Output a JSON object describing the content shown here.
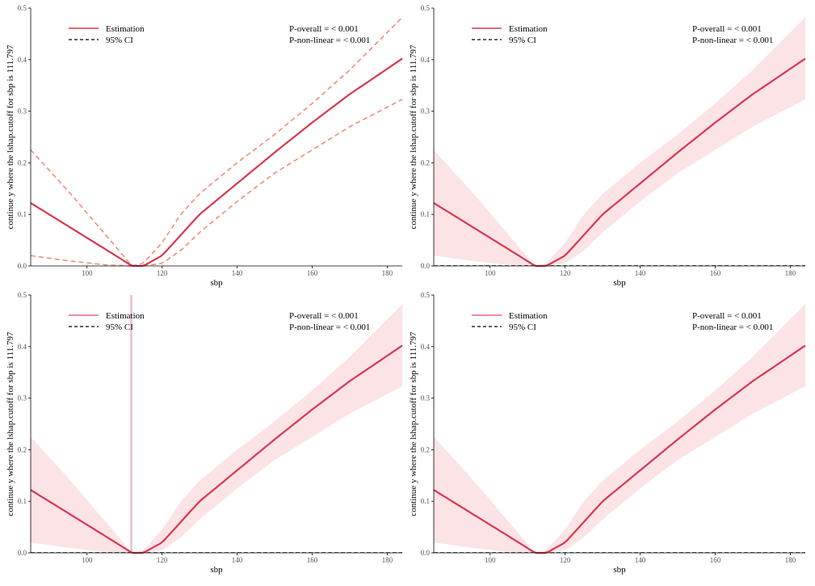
{
  "chart_data": [
    {
      "id": "panel-1",
      "type": "line",
      "ci_style": "dashed",
      "xlabel": "sbp",
      "ylabel": "continue y where the lshap.cutoff for sbp is 111.797",
      "xlim": [
        85,
        184
      ],
      "ylim": [
        0,
        0.5
      ],
      "xticks": [
        100,
        120,
        140,
        160,
        180
      ],
      "yticks": [
        0.0,
        0.1,
        0.2,
        0.3,
        0.4,
        0.5
      ],
      "legend": [
        "Estimation",
        "95% CI"
      ],
      "p_overall": "P-overall = < 0.001",
      "p_nonlinear": "P-non-linear = < 0.001",
      "estimate": {
        "x": [
          85,
          95,
          105,
          112,
          115,
          120,
          125,
          130,
          140,
          150,
          160,
          170,
          184
        ],
        "y": [
          0.122,
          0.077,
          0.032,
          0.0,
          0.0,
          0.02,
          0.06,
          0.1,
          0.16,
          0.22,
          0.278,
          0.333,
          0.402
        ]
      },
      "ci_lower": {
        "x": [
          85,
          95,
          105,
          112,
          115,
          120,
          125,
          130,
          140,
          150,
          160,
          170,
          184
        ],
        "y": [
          0.02,
          0.01,
          0.002,
          0.0,
          0.0,
          0.005,
          0.03,
          0.065,
          0.125,
          0.18,
          0.225,
          0.27,
          0.323
        ]
      },
      "ci_upper": {
        "x": [
          85,
          95,
          105,
          112,
          115,
          120,
          125,
          130,
          140,
          150,
          160,
          170,
          184
        ],
        "y": [
          0.225,
          0.145,
          0.06,
          0.0,
          0.005,
          0.045,
          0.1,
          0.14,
          0.2,
          0.255,
          0.315,
          0.38,
          0.482
        ]
      }
    },
    {
      "id": "panel-2",
      "type": "line",
      "ci_style": "ribbon",
      "xlabel": "sbp",
      "ylabel": "continue y where the lshap.cutoff for sbp is 111.797",
      "xlim": [
        85,
        184
      ],
      "ylim": [
        0,
        0.5
      ],
      "xticks": [
        100,
        120,
        140,
        160,
        180
      ],
      "yticks": [
        0.0,
        0.1,
        0.2,
        0.3,
        0.4,
        0.5
      ],
      "legend": [
        "Estimation",
        "95% CI"
      ],
      "p_overall": "P-overall = < 0.001",
      "p_nonlinear": "P-non-linear = < 0.001",
      "estimate": {
        "x": [
          85,
          95,
          105,
          112,
          115,
          120,
          125,
          130,
          140,
          150,
          160,
          170,
          184
        ],
        "y": [
          0.122,
          0.077,
          0.032,
          0.0,
          0.0,
          0.02,
          0.06,
          0.1,
          0.16,
          0.22,
          0.278,
          0.333,
          0.402
        ]
      },
      "ci_lower": {
        "x": [
          85,
          95,
          105,
          112,
          115,
          120,
          125,
          130,
          140,
          150,
          160,
          170,
          184
        ],
        "y": [
          0.02,
          0.01,
          0.002,
          0.0,
          0.0,
          0.005,
          0.03,
          0.065,
          0.125,
          0.18,
          0.225,
          0.27,
          0.323
        ]
      },
      "ci_upper": {
        "x": [
          85,
          95,
          105,
          112,
          115,
          120,
          125,
          130,
          140,
          150,
          160,
          170,
          184
        ],
        "y": [
          0.225,
          0.145,
          0.06,
          0.0,
          0.005,
          0.045,
          0.1,
          0.14,
          0.2,
          0.255,
          0.315,
          0.38,
          0.482
        ]
      }
    },
    {
      "id": "panel-3",
      "type": "line",
      "ci_style": "ribbon",
      "vline_x": 111.797,
      "xlabel": "sbp",
      "ylabel": "continue y where the lshap.cutoff for sbp is 111.797",
      "xlim": [
        85,
        184
      ],
      "ylim": [
        0,
        0.5
      ],
      "xticks": [
        100,
        120,
        140,
        160,
        180
      ],
      "yticks": [
        0.0,
        0.1,
        0.2,
        0.3,
        0.4,
        0.5
      ],
      "legend": [
        "Estimation",
        "95% CI"
      ],
      "p_overall": "P-overall = < 0.001",
      "p_nonlinear": "P-non-linear = < 0.001",
      "estimate": {
        "x": [
          85,
          95,
          105,
          112,
          115,
          120,
          125,
          130,
          140,
          150,
          160,
          170,
          184
        ],
        "y": [
          0.122,
          0.077,
          0.032,
          0.0,
          0.0,
          0.02,
          0.06,
          0.1,
          0.16,
          0.22,
          0.278,
          0.333,
          0.402
        ]
      },
      "ci_lower": {
        "x": [
          85,
          95,
          105,
          112,
          115,
          120,
          125,
          130,
          140,
          150,
          160,
          170,
          184
        ],
        "y": [
          0.02,
          0.01,
          0.002,
          0.0,
          0.0,
          0.005,
          0.03,
          0.065,
          0.125,
          0.18,
          0.225,
          0.27,
          0.323
        ]
      },
      "ci_upper": {
        "x": [
          85,
          95,
          105,
          112,
          115,
          120,
          125,
          130,
          140,
          150,
          160,
          170,
          184
        ],
        "y": [
          0.225,
          0.145,
          0.06,
          0.0,
          0.005,
          0.045,
          0.1,
          0.14,
          0.2,
          0.255,
          0.315,
          0.38,
          0.482
        ]
      }
    },
    {
      "id": "panel-4",
      "type": "line",
      "ci_style": "ribbon",
      "xlabel": "sbp",
      "ylabel": "continue y where the lshap.cutoff for sbp is 111.797",
      "xlim": [
        85,
        184
      ],
      "ylim": [
        0,
        0.5
      ],
      "xticks": [
        100,
        120,
        140,
        160,
        180
      ],
      "yticks": [
        0.0,
        0.1,
        0.2,
        0.3,
        0.4,
        0.5
      ],
      "legend": [
        "Estimation",
        "95% CI"
      ],
      "p_overall": "P-overall = < 0.001",
      "p_nonlinear": "P-non-linear = < 0.001",
      "estimate": {
        "x": [
          85,
          95,
          105,
          112,
          115,
          120,
          125,
          130,
          140,
          150,
          160,
          170,
          184
        ],
        "y": [
          0.122,
          0.077,
          0.032,
          0.0,
          0.0,
          0.02,
          0.06,
          0.1,
          0.16,
          0.22,
          0.278,
          0.333,
          0.402
        ]
      },
      "ci_lower": {
        "x": [
          85,
          95,
          105,
          112,
          115,
          120,
          125,
          130,
          140,
          150,
          160,
          170,
          184
        ],
        "y": [
          0.02,
          0.01,
          0.002,
          0.0,
          0.0,
          0.005,
          0.03,
          0.065,
          0.125,
          0.18,
          0.225,
          0.27,
          0.323
        ]
      },
      "ci_upper": {
        "x": [
          85,
          95,
          105,
          112,
          115,
          120,
          125,
          130,
          140,
          150,
          160,
          170,
          184
        ],
        "y": [
          0.225,
          0.145,
          0.06,
          0.0,
          0.005,
          0.045,
          0.1,
          0.14,
          0.2,
          0.255,
          0.315,
          0.38,
          0.482
        ]
      }
    }
  ],
  "colors": {
    "estimate": "#d7384f",
    "estimate_light": "#e8667a",
    "ci_dash": "#f4866f",
    "ribbon": "#fbe3e6",
    "vline": "#eab3da",
    "axis": "#000000"
  }
}
